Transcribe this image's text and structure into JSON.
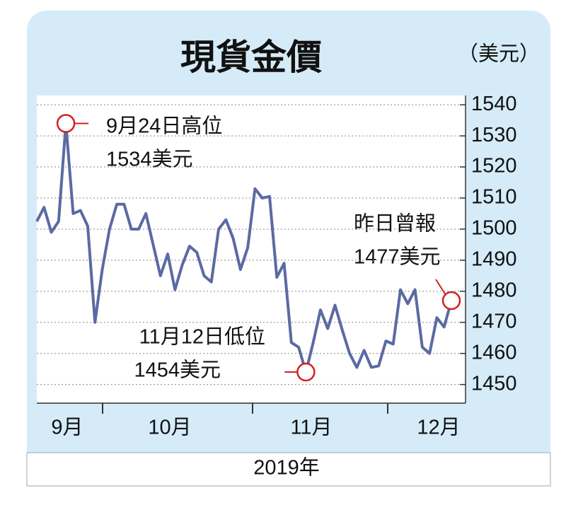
{
  "chart_data": {
    "type": "line",
    "title": "現貨金價",
    "unit_label": "（美元）",
    "x_label": "2019年",
    "months": [
      "9月",
      "10月",
      "11月",
      "12月"
    ],
    "color": "#5b6aa3",
    "values": [
      1502.5,
      1507,
      1499,
      1502.5,
      1534,
      1505,
      1506,
      1501,
      1470,
      1487,
      1500,
      1508,
      1508,
      1500,
      1500,
      1505,
      1495,
      1485,
      1492,
      1480.5,
      1488.5,
      1494.5,
      1492.5,
      1485,
      1483,
      1500,
      1503,
      1497,
      1487,
      1494,
      1513,
      1510,
      1510.5,
      1484.5,
      1489,
      1463.5,
      1462,
      1454,
      1463.5,
      1474,
      1468,
      1475.5,
      1467.5,
      1460,
      1455.5,
      1461,
      1455.5,
      1456,
      1464,
      1463,
      1480.5,
      1476,
      1480.5,
      1462,
      1460,
      1471.5,
      1468.5,
      1477
    ],
    "ylim": [
      1444,
      1543
    ],
    "yticks": [
      1450,
      1460,
      1470,
      1480,
      1490,
      1500,
      1510,
      1520,
      1530,
      1540
    ],
    "grid": true,
    "annotations": [
      {
        "lines": [
          "9月24日高位",
          "1534美元"
        ]
      },
      {
        "lines": [
          "11月12日低位",
          "1454美元"
        ]
      },
      {
        "lines": [
          "昨日曾報",
          "1477美元"
        ]
      }
    ]
  }
}
